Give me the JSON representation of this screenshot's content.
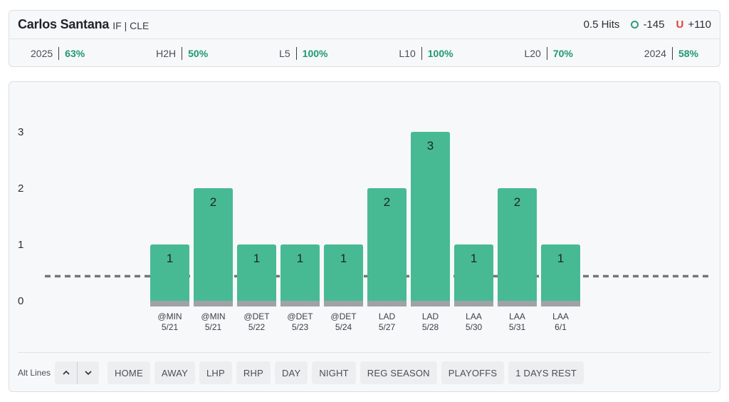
{
  "header": {
    "player_name": "Carlos Santana",
    "team_info": "IF | CLE",
    "prop_label": "0.5 Hits",
    "over_odds": "-145",
    "under_letter": "U",
    "under_odds": "+110",
    "stats": [
      {
        "label": "2025",
        "value": "63%"
      },
      {
        "label": "H2H",
        "value": "50%"
      },
      {
        "label": "L5",
        "value": "100%"
      },
      {
        "label": "L10",
        "value": "100%"
      },
      {
        "label": "L20",
        "value": "70%"
      },
      {
        "label": "2024",
        "value": "58%"
      }
    ]
  },
  "chart_data": {
    "type": "bar",
    "categories": [
      "@MIN 5/21",
      "@MIN 5/21",
      "@DET 5/22",
      "@DET 5/23",
      "@DET 5/24",
      "LAD 5/27",
      "LAD 5/28",
      "LAA 5/30",
      "LAA 5/31",
      "LAA 6/1"
    ],
    "opponents": [
      "@MIN",
      "@MIN",
      "@DET",
      "@DET",
      "@DET",
      "LAD",
      "LAD",
      "LAA",
      "LAA",
      "LAA"
    ],
    "dates": [
      "5/21",
      "5/21",
      "5/22",
      "5/23",
      "5/24",
      "5/27",
      "5/28",
      "5/30",
      "5/31",
      "6/1"
    ],
    "values": [
      1,
      2,
      1,
      1,
      1,
      2,
      3,
      1,
      2,
      1
    ],
    "y_ticks": [
      "0",
      "1",
      "2",
      "3"
    ],
    "ylim": [
      0,
      3.4
    ],
    "line_value": 0.5,
    "bar_color": "#47ba93",
    "base_color": "#a0a3a6",
    "line_color": "#737577"
  },
  "controls": {
    "alt_lines_label": "Alt Lines",
    "filters": [
      "HOME",
      "AWAY",
      "LHP",
      "RHP",
      "DAY",
      "NIGHT",
      "REG SEASON",
      "PLAYOFFS",
      "1 DAYS REST"
    ]
  },
  "colors": {
    "accent_green": "#1f9a6e",
    "over_green": "#2e9e77",
    "under_red": "#e0413b"
  }
}
